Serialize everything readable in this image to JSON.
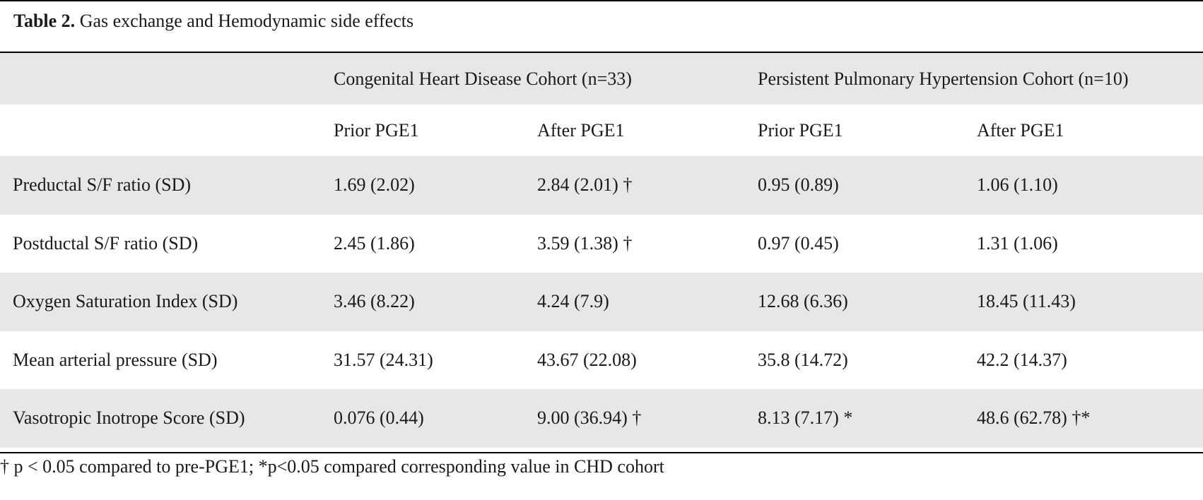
{
  "caption": {
    "label": "Table 2.",
    "text": " Gas exchange and Hemodynamic side effects"
  },
  "header": {
    "group1": "Congenital Heart Disease Cohort (n=33)",
    "group2": "Persistent Pulmonary Hypertension Cohort (n=10)",
    "sub": [
      "Prior PGE1",
      "After PGE1",
      "Prior PGE1",
      "After PGE1"
    ]
  },
  "rows": [
    {
      "label": "Preductal S/F ratio (SD)",
      "values": [
        "1.69 (2.02)",
        "2.84 (2.01) †",
        "0.95 (0.89)",
        "1.06 (1.10)"
      ]
    },
    {
      "label": "Postductal S/F ratio (SD)",
      "values": [
        "2.45 (1.86)",
        "3.59 (1.38) †",
        "0.97 (0.45)",
        "1.31 (1.06)"
      ]
    },
    {
      "label": "Oxygen Saturation Index (SD)",
      "values": [
        "3.46 (8.22)",
        "4.24 (7.9)",
        "12.68 (6.36)",
        "18.45 (11.43)"
      ]
    },
    {
      "label": "Mean arterial pressure (SD)",
      "values": [
        "31.57 (24.31)",
        "43.67 (22.08)",
        "35.8 (14.72)",
        "42.2 (14.37)"
      ]
    },
    {
      "label": "Vasotropic Inotrope Score (SD)",
      "values": [
        "0.076 (0.44)",
        "9.00 (36.94) †",
        "8.13 (7.17) *",
        "48.6 (62.78) †*"
      ]
    }
  ],
  "footnote": "† p < 0.05 compared to pre-PGE1; *p<0.05 compared corresponding value in CHD cohort"
}
